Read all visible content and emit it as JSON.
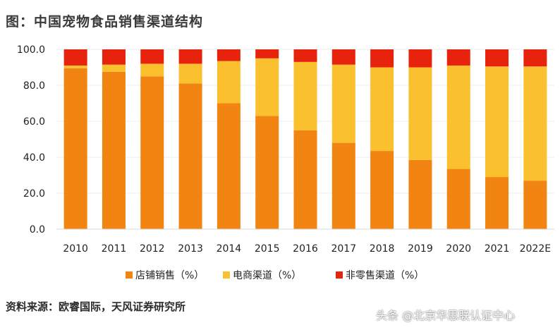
{
  "title": "图：中国宠物食品销售渠道结构",
  "source": "资料来源：欧睿国际，天风证券研究所",
  "watermark": "头条 @北京华思联认证中心",
  "chart_data": {
    "type": "bar",
    "stacked": true,
    "categories": [
      "2010",
      "2011",
      "2012",
      "2013",
      "2014",
      "2015",
      "2016",
      "2017",
      "2018",
      "2019",
      "2020",
      "2021",
      "2022E"
    ],
    "series": [
      {
        "name": "店铺销售（%）",
        "color": "#F28512",
        "values": [
          89.5,
          87.5,
          85,
          81,
          70,
          63,
          55,
          48,
          43.5,
          38.5,
          33.5,
          29,
          27
        ]
      },
      {
        "name": "电商渠道（%）",
        "color": "#FBC02D",
        "values": [
          1.5,
          4,
          7,
          11,
          23.5,
          32,
          38,
          43.5,
          46.5,
          51.5,
          57.5,
          61.5,
          63.5
        ]
      },
      {
        "name": "非零售渠道（%）",
        "color": "#E8230D",
        "values": [
          9,
          8.5,
          8,
          8,
          6.5,
          5,
          7,
          8.5,
          10,
          10,
          9,
          9.5,
          9.5
        ]
      }
    ],
    "yticks": [
      "0.0",
      "20.0",
      "40.0",
      "60.0",
      "80.0",
      "100.0"
    ],
    "ylim": [
      0,
      100
    ],
    "xlabel": "",
    "ylabel": "",
    "legend_position": "bottom"
  }
}
